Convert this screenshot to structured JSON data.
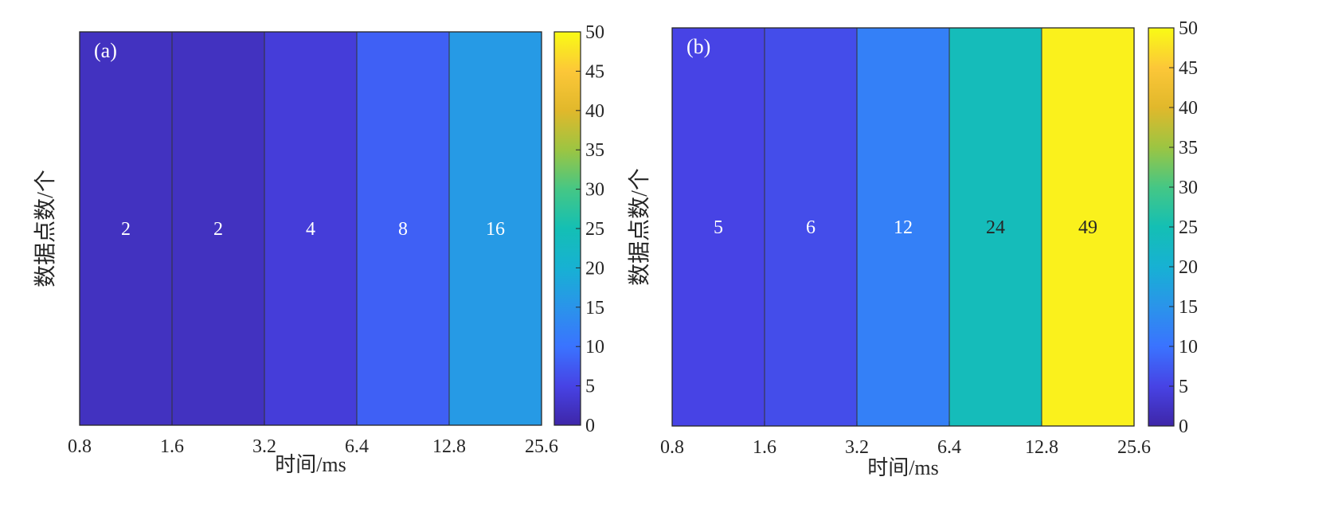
{
  "chart_data": [
    {
      "panel_label": "(a)",
      "type": "heatmap",
      "xlabel": "时间/ms",
      "ylabel": "数据点数/个",
      "x_tick_labels": [
        "0.8",
        "1.6",
        "3.2",
        "6.4",
        "12.8",
        "25.6"
      ],
      "cells": [
        {
          "x_from": "0.8",
          "x_to": "1.6",
          "value": 2
        },
        {
          "x_from": "1.6",
          "x_to": "3.2",
          "value": 2
        },
        {
          "x_from": "3.2",
          "x_to": "6.4",
          "value": 4
        },
        {
          "x_from": "6.4",
          "x_to": "12.8",
          "value": 8
        },
        {
          "x_from": "12.8",
          "x_to": "25.6",
          "value": 16
        }
      ],
      "colorbar": {
        "colormap": "parula",
        "range": [
          0,
          50
        ],
        "tick_labels": [
          "0",
          "5",
          "10",
          "15",
          "20",
          "25",
          "30",
          "35",
          "40",
          "45",
          "50"
        ]
      }
    },
    {
      "panel_label": "(b)",
      "type": "heatmap",
      "xlabel": "时间/ms",
      "ylabel": "数据点数/个",
      "x_tick_labels": [
        "0.8",
        "1.6",
        "3.2",
        "6.4",
        "12.8",
        "25.6"
      ],
      "cells": [
        {
          "x_from": "0.8",
          "x_to": "1.6",
          "value": 5
        },
        {
          "x_from": "1.6",
          "x_to": "3.2",
          "value": 6
        },
        {
          "x_from": "3.2",
          "x_to": "6.4",
          "value": 12
        },
        {
          "x_from": "6.4",
          "x_to": "12.8",
          "value": 24
        },
        {
          "x_from": "12.8",
          "x_to": "25.6",
          "value": 49
        }
      ],
      "colorbar": {
        "colormap": "parula",
        "range": [
          0,
          50
        ],
        "tick_labels": [
          "0",
          "5",
          "10",
          "15",
          "20",
          "25",
          "30",
          "35",
          "40",
          "45",
          "50"
        ]
      }
    }
  ]
}
